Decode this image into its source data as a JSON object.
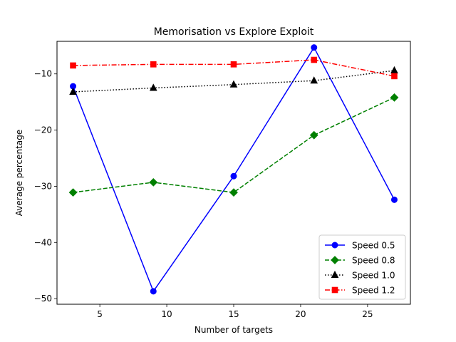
{
  "chart_data": {
    "type": "line",
    "title": "Memorisation vs Explore Exploit",
    "xlabel": "Number of targets",
    "ylabel": "Average percentage",
    "x": [
      3,
      9,
      15,
      21,
      27
    ],
    "xlim": [
      1.8,
      28.2
    ],
    "ylim": [
      -51.0,
      -4.2
    ],
    "xticks": [
      5,
      10,
      15,
      20,
      25
    ],
    "yticks": [
      -50,
      -40,
      -30,
      -20,
      -10
    ],
    "ytick_labels": [
      "−50",
      "−40",
      "−30",
      "−20",
      "−10"
    ],
    "grid": false,
    "legend_position": "lower right",
    "series": [
      {
        "name": "Speed 0.5",
        "values": [
          -12.2,
          -48.7,
          -28.2,
          -5.3,
          -32.4
        ],
        "color": "#0000ff",
        "linestyle": "solid",
        "marker": "circle"
      },
      {
        "name": "Speed 0.8",
        "values": [
          -31.1,
          -29.3,
          -31.1,
          -20.9,
          -14.2
        ],
        "color": "#008000",
        "linestyle": "dashed",
        "marker": "diamond"
      },
      {
        "name": "Speed 1.0",
        "values": [
          -13.2,
          -12.5,
          -11.9,
          -11.2,
          -9.4
        ],
        "color": "#000000",
        "linestyle": "dotted",
        "marker": "triangle"
      },
      {
        "name": "Speed 1.2",
        "values": [
          -8.5,
          -8.3,
          -8.3,
          -7.5,
          -10.4
        ],
        "color": "#ff0000",
        "linestyle": "dashdot",
        "marker": "square"
      }
    ]
  }
}
